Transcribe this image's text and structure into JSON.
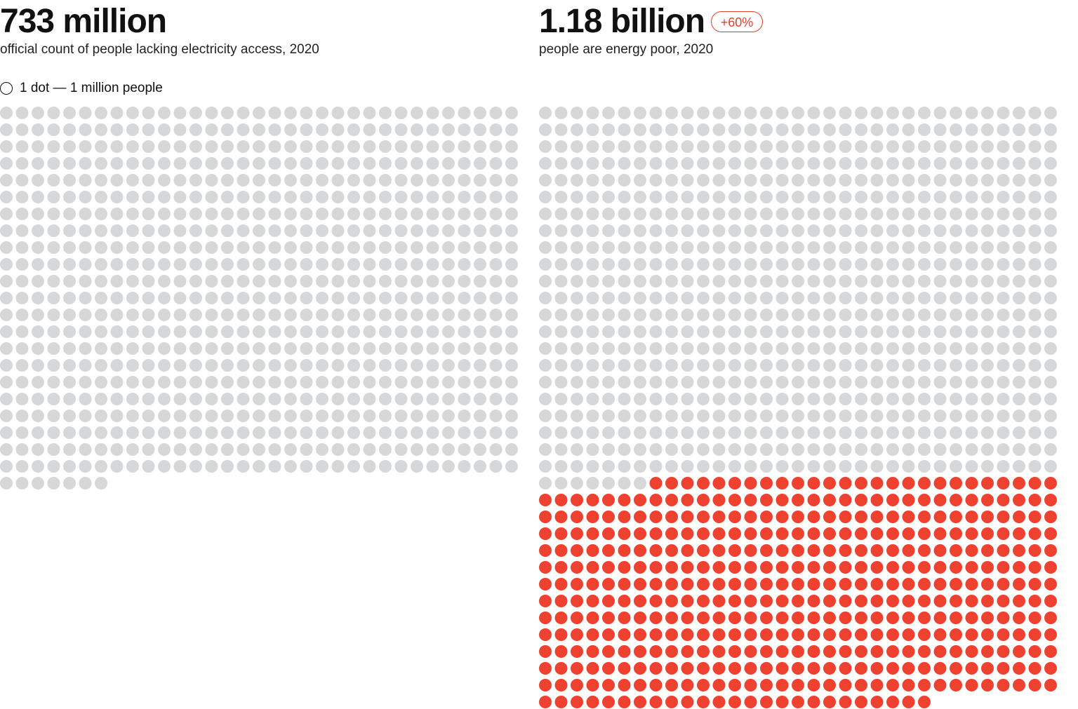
{
  "chart_data": [
    {
      "type": "dot-matrix",
      "title": "733 million",
      "subtitle": "official count of people lacking electricity access, 2020",
      "columns": 33,
      "total": 733,
      "segments": [
        {
          "value": 733,
          "color": "#d6d7d9"
        }
      ]
    },
    {
      "type": "dot-matrix",
      "title": "1.18 billion",
      "subtitle": "people are energy poor, 2020",
      "badge": "+60%",
      "columns": 33,
      "total": 1180,
      "segments": [
        {
          "value": 733,
          "color": "#d6d7d9"
        },
        {
          "value": 447,
          "color": "#ef4130"
        }
      ]
    }
  ],
  "legend": {
    "label": "1 dot — 1 million people"
  },
  "colors": {
    "accent": "#e0422c"
  }
}
